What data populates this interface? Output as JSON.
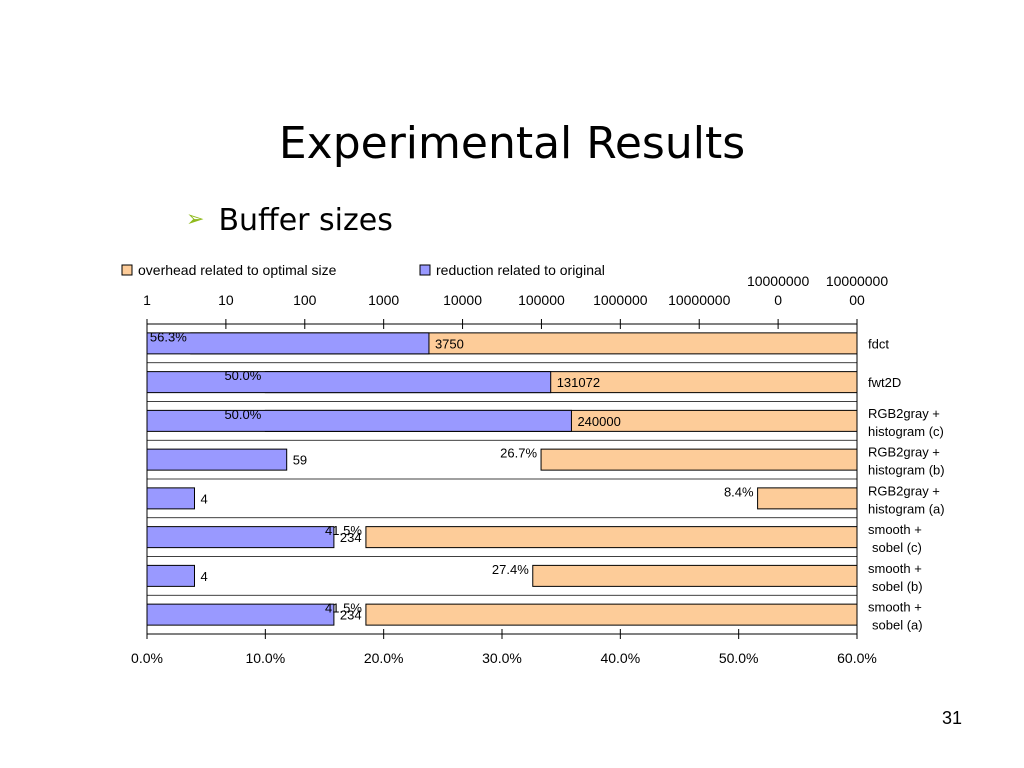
{
  "slide": {
    "title": "Experimental Results",
    "bullet": "Buffer sizes",
    "bullet_marker": "➢",
    "page_number": "31"
  },
  "chart_data": {
    "type": "bar",
    "orientation": "horizontal",
    "categories": [
      "fdct",
      "fwt2D",
      "RGB2gray + histogram (c)",
      "RGB2gray + histogram (b)",
      "RGB2gray + histogram (a)",
      "smooth + sobel (c)",
      "smooth + sobel (b)",
      "smooth + sobel (a)"
    ],
    "category_lines": [
      [
        "fdct"
      ],
      [
        "fwt2D"
      ],
      [
        "RGB2gray +",
        "histogram (c)"
      ],
      [
        "RGB2gray +",
        "histogram (b)"
      ],
      [
        "RGB2gray +",
        "histogram (a)"
      ],
      [
        "smooth +",
        "sobel (c)"
      ],
      [
        "smooth +",
        "sobel (b)"
      ],
      [
        "smooth +",
        "sobel (a)"
      ]
    ],
    "series": [
      {
        "name": "overhead related to optimal size",
        "axis": "bottom",
        "scale": "linear",
        "direction": "right-to-left",
        "values": [
          0.563,
          0.5,
          0.5,
          0.267,
          0.084,
          0.415,
          0.274,
          0.415
        ],
        "labels": [
          "56.3%",
          "50.0%",
          "50.0%",
          "26.7%",
          "8.4%",
          "41.5%",
          "27.4%",
          "41.5%"
        ],
        "color": "#fdcc99"
      },
      {
        "name": "reduction related to original",
        "axis": "top",
        "scale": "log",
        "direction": "left-to-right",
        "values": [
          3750,
          131072,
          240000,
          59,
          4,
          234,
          4,
          234
        ],
        "labels": [
          "3750",
          "131072",
          "240000",
          "59",
          "4",
          "234",
          "4",
          "234"
        ],
        "color": "#9999ff"
      }
    ],
    "top_axis": {
      "scale": "log",
      "range": [
        1,
        1000000000
      ],
      "tick_values": [
        1,
        10,
        100,
        1000,
        10000,
        100000,
        1000000,
        10000000,
        100000000,
        1000000000
      ],
      "tick_labels": [
        [
          "1"
        ],
        [
          "10"
        ],
        [
          "100"
        ],
        [
          "1000"
        ],
        [
          "10000"
        ],
        [
          "100000"
        ],
        [
          "1000000"
        ],
        [
          "10000000"
        ],
        [
          "10000000",
          "0"
        ],
        [
          "10000000",
          "00"
        ]
      ]
    },
    "bottom_axis": {
      "range": [
        0,
        0.6
      ],
      "tick_values": [
        0,
        0.1,
        0.2,
        0.3,
        0.4,
        0.5,
        0.6
      ],
      "tick_labels": [
        "0.0%",
        "10.0%",
        "20.0%",
        "30.0%",
        "40.0%",
        "50.0%",
        "60.0%"
      ]
    },
    "legend_position": "top",
    "grid": false,
    "title": "",
    "xlabel": "",
    "ylabel": ""
  }
}
